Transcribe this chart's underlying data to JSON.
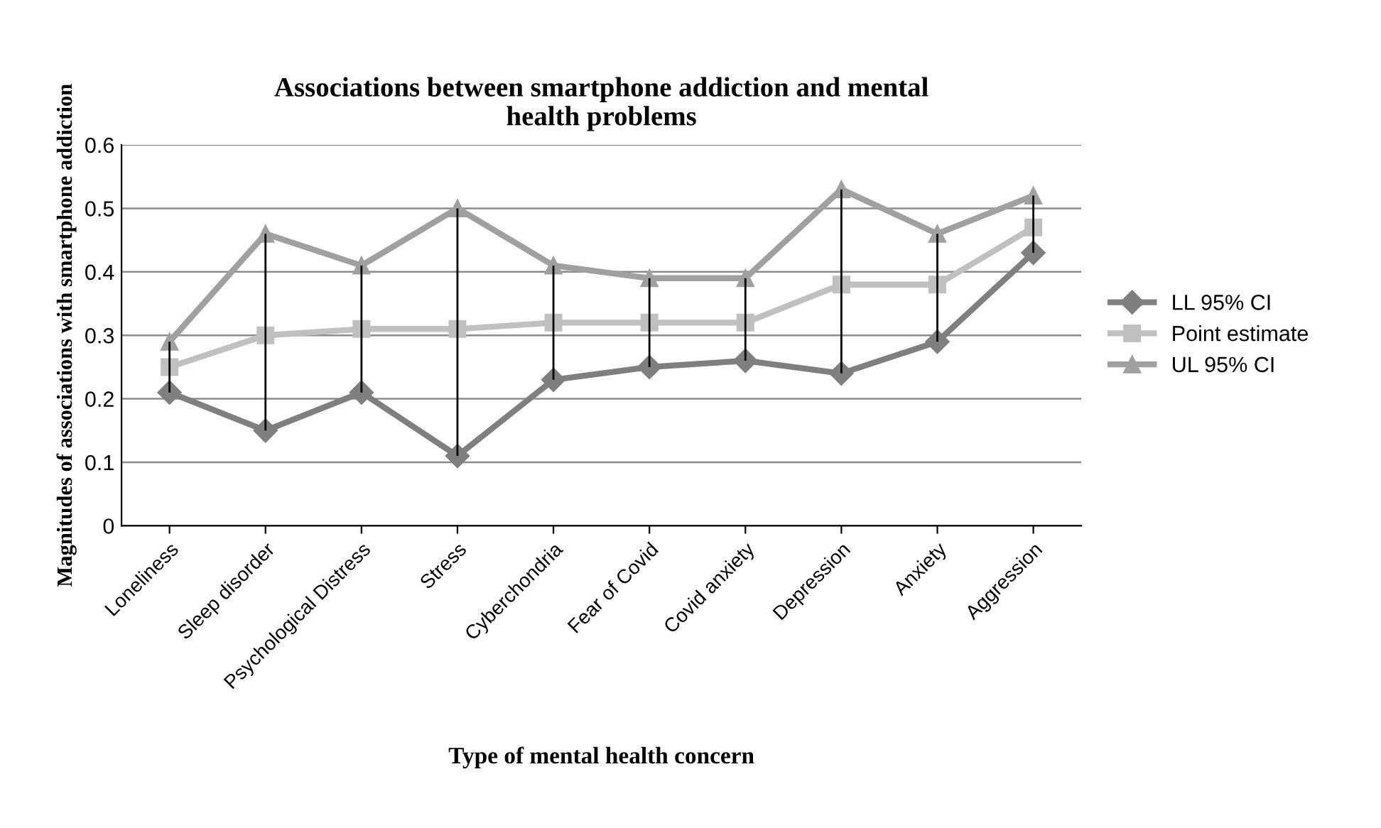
{
  "chart_data": {
    "type": "line",
    "title": "Associations between smartphone addiction and mental\nhealth problems",
    "xlabel": "Type of mental health concern",
    "ylabel": "Magnitudes of associations with smartphone addiction",
    "categories": [
      "Loneliness",
      "Sleep disorder",
      "Psychological Distress",
      "Stress",
      "Cyberchondria",
      "Fear of Covid",
      "Covid anxiety",
      "Depression",
      "Anxiety",
      "Aggression"
    ],
    "series": [
      {
        "name": "LL 95% CI",
        "color": "#7f7f7f",
        "marker": "diamond",
        "values": [
          0.21,
          0.15,
          0.21,
          0.11,
          0.23,
          0.25,
          0.26,
          0.24,
          0.29,
          0.43
        ]
      },
      {
        "name": "Point estimate",
        "color": "#c0c0c0",
        "marker": "square",
        "values": [
          0.25,
          0.3,
          0.31,
          0.31,
          0.32,
          0.32,
          0.32,
          0.38,
          0.38,
          0.47
        ],
        "errors": [
          [
            0.21,
            0.29
          ],
          [
            0.15,
            0.46
          ],
          [
            0.21,
            0.41
          ],
          [
            0.11,
            0.5
          ],
          [
            0.23,
            0.41
          ],
          [
            0.25,
            0.39
          ],
          [
            0.26,
            0.39
          ],
          [
            0.24,
            0.53
          ],
          [
            0.29,
            0.46
          ],
          [
            0.43,
            0.52
          ]
        ]
      },
      {
        "name": "UL 95% CI",
        "color": "#a0a0a0",
        "marker": "triangle",
        "values": [
          0.29,
          0.46,
          0.41,
          0.5,
          0.41,
          0.39,
          0.39,
          0.53,
          0.46,
          0.52
        ]
      }
    ],
    "ylim": [
      0,
      0.6
    ],
    "yticks": [
      {
        "value": 0,
        "label": "0"
      },
      0.1,
      0.2,
      0.3,
      0.4,
      0.5,
      0.6
    ],
    "grid": "y",
    "legend": "right",
    "line_style": "solid"
  }
}
